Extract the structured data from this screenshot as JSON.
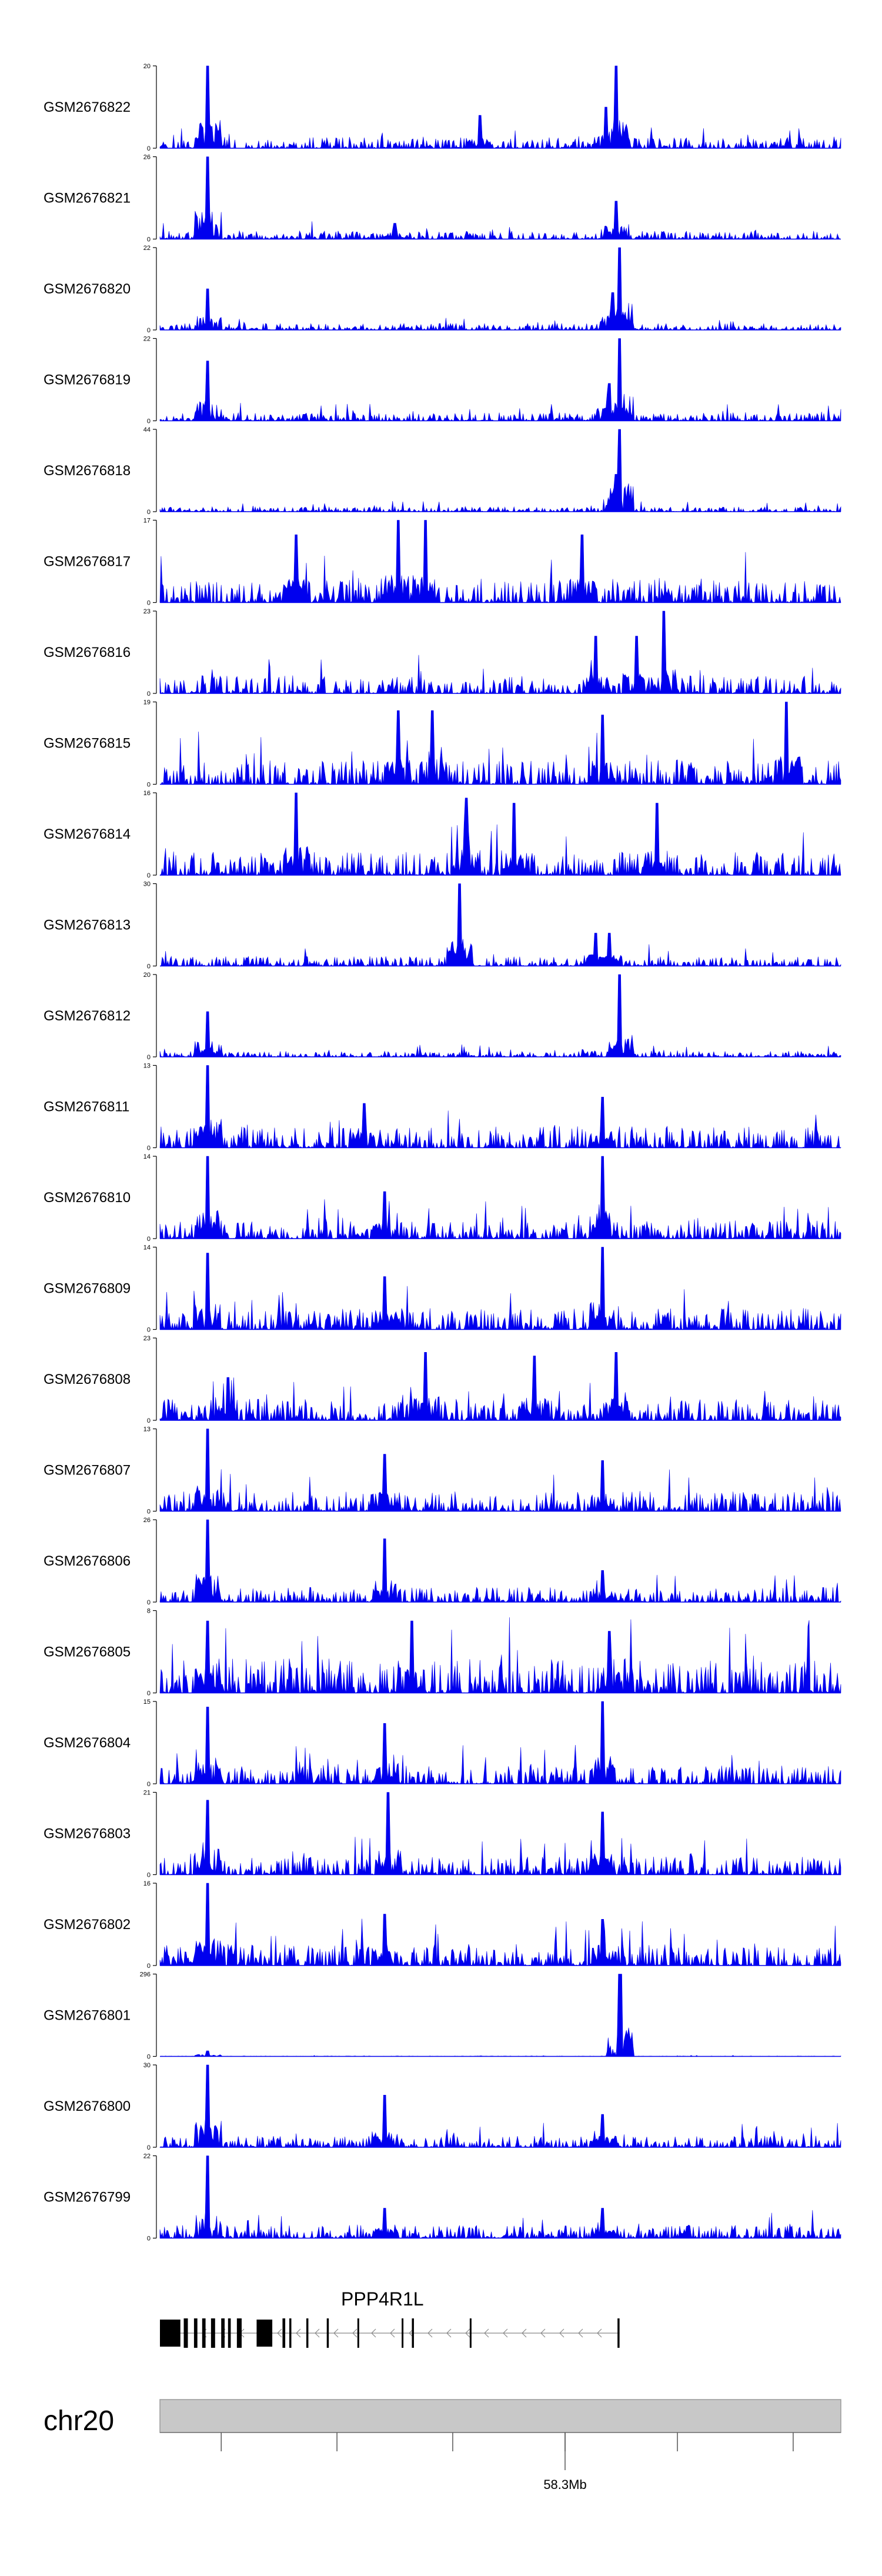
{
  "chart_data": {
    "type": "area",
    "title": "",
    "xlabel": "",
    "ylabel": "",
    "colors": {
      "signal": "#0000ee",
      "axis": "#000000",
      "ideogram": "#c8c8c8",
      "gene": "#000000",
      "intron": "#888888"
    },
    "tracks": [
      {
        "name": "GSM2676822",
        "ymax": 20,
        "ymin": 0,
        "peaks": [
          [
            0.07,
            20
          ],
          [
            0.67,
            20
          ],
          [
            0.655,
            10
          ],
          [
            0.47,
            8
          ]
        ],
        "background": 0.14
      },
      {
        "name": "GSM2676821",
        "ymax": 26,
        "ymin": 0,
        "peaks": [
          [
            0.07,
            26
          ],
          [
            0.67,
            12
          ],
          [
            0.345,
            5
          ]
        ],
        "background": 0.1
      },
      {
        "name": "GSM2676820",
        "ymax": 22,
        "ymin": 0,
        "peaks": [
          [
            0.07,
            11
          ],
          [
            0.675,
            22
          ],
          [
            0.665,
            10
          ]
        ],
        "background": 0.08
      },
      {
        "name": "GSM2676819",
        "ymax": 22,
        "ymin": 0,
        "peaks": [
          [
            0.07,
            16
          ],
          [
            0.675,
            22
          ],
          [
            0.66,
            10
          ]
        ],
        "background": 0.1
      },
      {
        "name": "GSM2676818",
        "ymax": 44,
        "ymin": 0,
        "peaks": [
          [
            0.675,
            44
          ],
          [
            0.67,
            20
          ]
        ],
        "background": 0.06
      },
      {
        "name": "GSM2676817",
        "ymax": 17,
        "ymin": 0,
        "peaks": [
          [
            0.35,
            17
          ],
          [
            0.39,
            17
          ],
          [
            0.62,
            14
          ],
          [
            0.2,
            14
          ]
        ],
        "background": 0.3
      },
      {
        "name": "GSM2676816",
        "ymax": 23,
        "ymin": 0,
        "peaks": [
          [
            0.74,
            23
          ],
          [
            0.64,
            16
          ],
          [
            0.7,
            16
          ]
        ],
        "background": 0.22
      },
      {
        "name": "GSM2676815",
        "ymax": 19,
        "ymin": 0,
        "peaks": [
          [
            0.92,
            19
          ],
          [
            0.35,
            17
          ],
          [
            0.4,
            17
          ],
          [
            0.65,
            16
          ]
        ],
        "background": 0.3
      },
      {
        "name": "GSM2676814",
        "ymax": 16,
        "ymin": 0,
        "peaks": [
          [
            0.2,
            16
          ],
          [
            0.45,
            15
          ],
          [
            0.73,
            14
          ],
          [
            0.52,
            14
          ]
        ],
        "background": 0.28
      },
      {
        "name": "GSM2676813",
        "ymax": 30,
        "ymin": 0,
        "peaks": [
          [
            0.44,
            30
          ],
          [
            0.66,
            12
          ],
          [
            0.64,
            12
          ]
        ],
        "background": 0.12
      },
      {
        "name": "GSM2676812",
        "ymax": 20,
        "ymin": 0,
        "peaks": [
          [
            0.675,
            20
          ],
          [
            0.07,
            11
          ]
        ],
        "background": 0.07
      },
      {
        "name": "GSM2676811",
        "ymax": 13,
        "ymin": 0,
        "peaks": [
          [
            0.07,
            13
          ],
          [
            0.65,
            8
          ],
          [
            0.3,
            7
          ]
        ],
        "background": 0.26
      },
      {
        "name": "GSM2676810",
        "ymax": 14,
        "ymin": 0,
        "peaks": [
          [
            0.07,
            14
          ],
          [
            0.65,
            14
          ],
          [
            0.33,
            8
          ]
        ],
        "background": 0.22
      },
      {
        "name": "GSM2676809",
        "ymax": 14,
        "ymin": 0,
        "peaks": [
          [
            0.07,
            13
          ],
          [
            0.65,
            14
          ],
          [
            0.33,
            9
          ]
        ],
        "background": 0.26
      },
      {
        "name": "GSM2676808",
        "ymax": 23,
        "ymin": 0,
        "peaks": [
          [
            0.39,
            19
          ],
          [
            0.55,
            18
          ],
          [
            0.67,
            19
          ],
          [
            0.1,
            12
          ]
        ],
        "background": 0.26
      },
      {
        "name": "GSM2676807",
        "ymax": 13,
        "ymin": 0,
        "peaks": [
          [
            0.07,
            13
          ],
          [
            0.33,
            9
          ],
          [
            0.65,
            8
          ]
        ],
        "background": 0.24
      },
      {
        "name": "GSM2676806",
        "ymax": 26,
        "ymin": 0,
        "peaks": [
          [
            0.07,
            26
          ],
          [
            0.33,
            20
          ],
          [
            0.65,
            10
          ]
        ],
        "background": 0.18
      },
      {
        "name": "GSM2676805",
        "ymax": 8,
        "ymin": 0,
        "peaks": [
          [
            0.07,
            7
          ],
          [
            0.37,
            7
          ],
          [
            0.66,
            6
          ]
        ],
        "background": 0.42
      },
      {
        "name": "GSM2676804",
        "ymax": 15,
        "ymin": 0,
        "peaks": [
          [
            0.07,
            14
          ],
          [
            0.33,
            11
          ],
          [
            0.65,
            15
          ]
        ],
        "background": 0.22
      },
      {
        "name": "GSM2676803",
        "ymax": 21,
        "ymin": 0,
        "peaks": [
          [
            0.07,
            19
          ],
          [
            0.335,
            21
          ],
          [
            0.65,
            16
          ]
        ],
        "background": 0.22
      },
      {
        "name": "GSM2676802",
        "ymax": 16,
        "ymin": 0,
        "peaks": [
          [
            0.07,
            16
          ],
          [
            0.33,
            10
          ],
          [
            0.65,
            9
          ]
        ],
        "background": 0.26
      },
      {
        "name": "GSM2676801",
        "ymax": 296,
        "ymin": 0,
        "peaks": [
          [
            0.676,
            296
          ],
          [
            0.07,
            20
          ]
        ],
        "background": 0.006
      },
      {
        "name": "GSM2676800",
        "ymax": 30,
        "ymin": 0,
        "peaks": [
          [
            0.07,
            30
          ],
          [
            0.33,
            19
          ],
          [
            0.65,
            12
          ]
        ],
        "background": 0.14
      },
      {
        "name": "GSM2676799",
        "ymax": 22,
        "ymin": 0,
        "peaks": [
          [
            0.07,
            22
          ],
          [
            0.33,
            8
          ],
          [
            0.65,
            8
          ]
        ],
        "background": 0.16
      }
    ],
    "gene": {
      "name": "PPP4R1L",
      "strand": "-",
      "exons": [
        [
          0.0,
          0.03
        ],
        [
          0.035,
          0.041
        ],
        [
          0.05,
          0.055
        ],
        [
          0.062,
          0.067
        ],
        [
          0.075,
          0.081
        ],
        [
          0.09,
          0.095
        ],
        [
          0.1,
          0.104
        ],
        [
          0.113,
          0.12
        ],
        [
          0.142,
          0.165
        ],
        [
          0.18,
          0.184
        ],
        [
          0.19,
          0.193
        ],
        [
          0.215,
          0.218
        ],
        [
          0.245,
          0.248
        ],
        [
          0.29,
          0.292
        ],
        [
          0.355,
          0.357
        ],
        [
          0.37,
          0.373
        ],
        [
          0.455,
          0.457
        ],
        [
          0.672,
          0.675
        ]
      ]
    },
    "chromosome": {
      "name": "chr20",
      "tick_label": "58.3Mb",
      "tick_label_fraction": 0.595,
      "tick_fractions": [
        0.09,
        0.26,
        0.43,
        0.595,
        0.76,
        0.93
      ]
    }
  }
}
